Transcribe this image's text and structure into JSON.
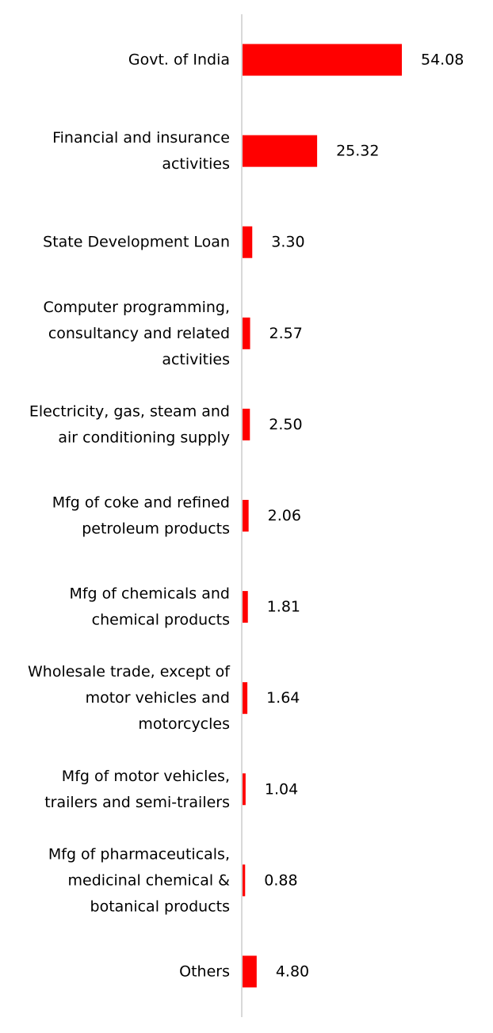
{
  "chart_data": {
    "type": "bar",
    "orientation": "horizontal",
    "categories": [
      [
        "Govt. of India"
      ],
      [
        "Financial and insurance",
        "activities"
      ],
      [
        "State Development Loan"
      ],
      [
        "Computer programming,",
        "consultancy and related",
        "activities"
      ],
      [
        "Electricity, gas, steam and",
        "air conditioning supply"
      ],
      [
        "Mfg of coke and refined",
        "petroleum products"
      ],
      [
        "Mfg of chemicals and",
        "chemical products"
      ],
      [
        "Wholesale trade, except of",
        "motor vehicles and",
        "motorcycles"
      ],
      [
        "Mfg of motor vehicles,",
        "trailers and semi-trailers"
      ],
      [
        "Mfg of pharmaceuticals,",
        "medicinal chemical &",
        "botanical products"
      ],
      [
        "Others"
      ]
    ],
    "values": [
      54.08,
      25.32,
      3.3,
      2.57,
      2.5,
      2.06,
      1.81,
      1.64,
      1.04,
      0.88,
      4.8
    ],
    "value_labels": [
      "54.08",
      "25.32",
      "3.30",
      "2.57",
      "2.50",
      "2.06",
      "1.81",
      "1.64",
      "1.04",
      "0.88",
      "4.80"
    ],
    "xlim": [
      0,
      54.08
    ],
    "bar_color": "#ff0000",
    "axis_color": "#d9d9d9",
    "grid": false,
    "legend": "none"
  }
}
